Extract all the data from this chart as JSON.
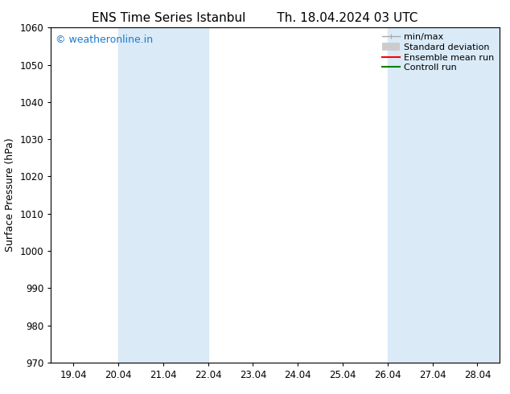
{
  "title_left": "ENS Time Series Istanbul",
  "title_right": "Th. 18.04.2024 03 UTC",
  "ylabel": "Surface Pressure (hPa)",
  "ylim": [
    970,
    1060
  ],
  "yticks": [
    970,
    980,
    990,
    1000,
    1010,
    1020,
    1030,
    1040,
    1050,
    1060
  ],
  "xlim_start": -0.5,
  "xlim_end": 9.5,
  "xtick_labels": [
    "19.04",
    "20.04",
    "21.04",
    "22.04",
    "23.04",
    "24.04",
    "25.04",
    "26.04",
    "27.04",
    "28.04"
  ],
  "xtick_positions": [
    0,
    1,
    2,
    3,
    4,
    5,
    6,
    7,
    8,
    9
  ],
  "shaded_regions": [
    {
      "x_start": 1,
      "x_end": 3,
      "color": "#daeaf7"
    },
    {
      "x_start": 7,
      "x_end": 8,
      "color": "#daeaf7"
    },
    {
      "x_start": 8,
      "x_end": 9,
      "color": "#daeaf7"
    }
  ],
  "watermark_text": "© weatheronline.in",
  "watermark_color": "#1a7acc",
  "watermark_fontsize": 9,
  "background_color": "#ffffff",
  "plot_bg_color": "#ffffff",
  "title_fontsize": 11,
  "label_fontsize": 9,
  "tick_fontsize": 8.5
}
